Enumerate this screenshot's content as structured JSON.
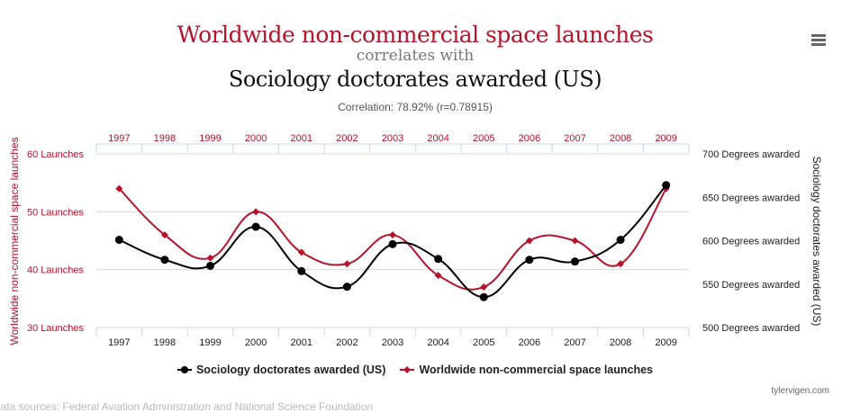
{
  "header": {
    "title": "Worldwide non-commercial space launches",
    "connector": "correlates with",
    "subtitle": "Sociology doctorates awarded (US)",
    "correlation": "Correlation: 78.92% (r=0.78915)"
  },
  "menu_icon": "hamburger-menu-icon",
  "chart_data": {
    "type": "line",
    "categories": [
      "1997",
      "1998",
      "1999",
      "2000",
      "2001",
      "2002",
      "2003",
      "2004",
      "2005",
      "2006",
      "2007",
      "2008",
      "2009"
    ],
    "series": [
      {
        "name": "Sociology doctorates awarded (US)",
        "axis": "right",
        "color": "#000000",
        "values": [
          601,
          578,
          571,
          616,
          565,
          547,
          596,
          579,
          535,
          578,
          576,
          601,
          664
        ]
      },
      {
        "name": "Worldwide non-commercial space launches",
        "axis": "left",
        "color": "#b5142b",
        "values": [
          54,
          46,
          42,
          50,
          43,
          41,
          46,
          39,
          37,
          45,
          45,
          41,
          54
        ]
      }
    ],
    "left_axis": {
      "label": "Worldwide non-commercial space launches",
      "range": [
        30,
        60
      ],
      "ticks": [
        "30 Launches",
        "40 Launches",
        "50 Launches",
        "60 Launches"
      ]
    },
    "right_axis": {
      "label": "Sociology doctorates awarded (US)",
      "range": [
        500,
        700
      ],
      "ticks": [
        "500 Degrees awarded",
        "550 Degrees awarded",
        "600 Degrees awarded",
        "650 Degrees awarded",
        "700 Degrees awarded"
      ]
    },
    "grid": true,
    "legend": "bottom-center"
  },
  "footer": {
    "credit": "tylervigen.com",
    "sources": "Data sources: Federal Aviation Administration and National Science Foundation"
  }
}
